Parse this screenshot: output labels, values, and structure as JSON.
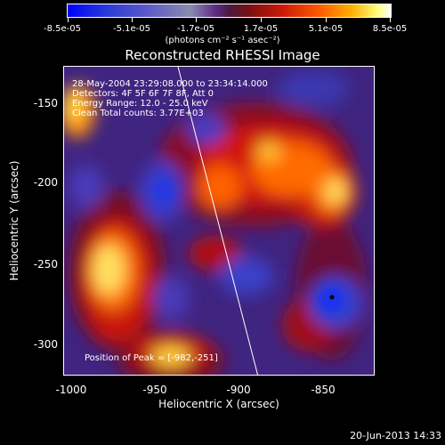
{
  "colorbar": {
    "ticks": [
      "-8.5e-05",
      "-5.1e-05",
      "-1.7e-05",
      "1.7e-05",
      "5.1e-05",
      "8.5e-05"
    ],
    "units": "(photons cm⁻² s⁻¹ asec⁻²)"
  },
  "title": "Reconstructed RHESSI Image",
  "info": {
    "line1": "28-May-2004 23:29:08.000 to 23:34:14.000",
    "line2": "Detectors: 4F 5F 6F 7F 8F, Att 0",
    "line3": "Energy Range: 12.0 - 25.0 keV",
    "line4": "Clean    Total counts: 3.77E+03",
    "peak": "Position of Peak = [-982,-251]"
  },
  "axes": {
    "xlabel": "Heliocentric X (arcsec)",
    "ylabel": "Heliocentric Y (arcsec)",
    "xticks": [
      "-1000",
      "-950",
      "-900",
      "-850"
    ],
    "yticks": [
      "-150",
      "-200",
      "-250",
      "-300"
    ]
  },
  "footer_date": "20-Jun-2013 14:33"
}
